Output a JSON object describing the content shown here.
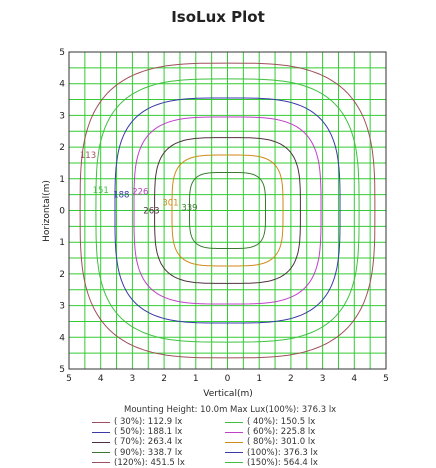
{
  "title": "IsoLux Plot",
  "info": {
    "mounting_height": "Mounting Height: 10.0m",
    "max_lux": "Max Lux(100%): 376.3 lx"
  },
  "legend": [
    {
      "label": "( 30%): 112.9 lx",
      "color": "#a0505c"
    },
    {
      "label": "( 40%): 150.5 lx",
      "color": "#3ec13e"
    },
    {
      "label": "( 50%): 188.1 lx",
      "color": "#3a3aa8"
    },
    {
      "label": "( 60%): 225.8 lx",
      "color": "#c040c8"
    },
    {
      "label": "( 70%): 263.4 lx",
      "color": "#503040"
    },
    {
      "label": "( 80%): 301.0 lx",
      "color": "#d08a18"
    },
    {
      "label": "( 90%): 338.7 lx",
      "color": "#3a7a30"
    },
    {
      "label": "(100%): 376.3 lx",
      "color": "#3a3aa8"
    },
    {
      "label": "(120%): 451.5 lx",
      "color": "#a0505c"
    },
    {
      "label": "(150%): 564.4 lx",
      "color": "#3ec13e"
    }
  ],
  "chart_data": {
    "type": "contour",
    "title": "IsoLux Plot",
    "xlabel": "Vertical(m)",
    "ylabel": "Horizontal(m)",
    "xlim": [
      -5,
      5
    ],
    "ylim": [
      -5,
      5
    ],
    "x_tick_labels": [
      "5",
      "4",
      "3",
      "2",
      "1",
      "0",
      "1",
      "2",
      "3",
      "4",
      "5"
    ],
    "y_tick_labels": [
      "5",
      "4",
      "3",
      "2",
      "1",
      "0",
      "1",
      "2",
      "3",
      "4",
      "5"
    ],
    "grid": true,
    "grid_color": "#33cc33",
    "contours": [
      {
        "level": 112.9,
        "label": "113",
        "radius": 4.65,
        "color": "#a0505c",
        "label_x": -4.4,
        "label_y": 1.75
      },
      {
        "level": 150.5,
        "label": "151",
        "radius": 4.15,
        "color": "#3ec13e",
        "label_x": -4.0,
        "label_y": 0.65
      },
      {
        "level": 188.1,
        "label": "188",
        "radius": 3.55,
        "color": "#3a3aa8",
        "label_x": -3.35,
        "label_y": 0.5
      },
      {
        "level": 225.8,
        "label": "226",
        "radius": 2.95,
        "color": "#c040c8",
        "label_x": -2.75,
        "label_y": 0.6
      },
      {
        "level": 263.4,
        "label": "263",
        "radius": 2.3,
        "color": "#503040",
        "label_x": -2.4,
        "label_y": 0.0
      },
      {
        "level": 301.0,
        "label": "301",
        "radius": 1.75,
        "color": "#d08a18",
        "label_x": -1.8,
        "label_y": 0.25
      },
      {
        "level": 338.7,
        "label": "339",
        "radius": 1.2,
        "color": "#3a7a30",
        "label_x": -1.2,
        "label_y": 0.1
      }
    ]
  }
}
